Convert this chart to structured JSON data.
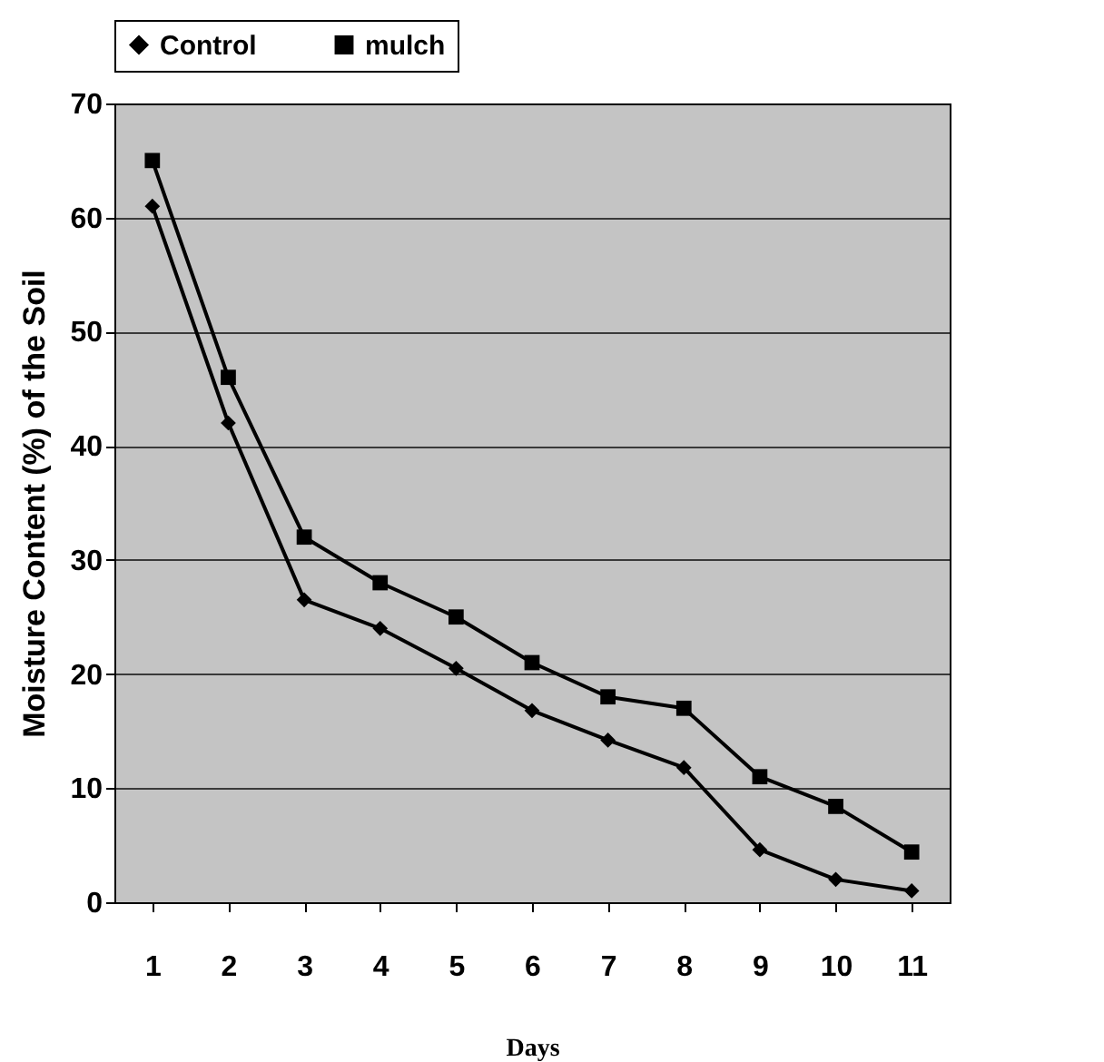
{
  "chart_data": {
    "type": "line",
    "xlabel": "Days",
    "ylabel": "Moisture Content (%) of the Soil",
    "categories": [
      "1",
      "2",
      "3",
      "4",
      "5",
      "6",
      "7",
      "8",
      "9",
      "10",
      "11"
    ],
    "series": [
      {
        "name": "Control",
        "color": "#000000",
        "marker": "diamond",
        "values": [
          61,
          42,
          26.5,
          24,
          20.5,
          16.8,
          14.2,
          11.8,
          4.6,
          2,
          1
        ]
      },
      {
        "name": "mulch",
        "color": "#000000",
        "marker": "square",
        "values": [
          65,
          46,
          32,
          28,
          25,
          21,
          18,
          17,
          11,
          8.4,
          4.4
        ]
      }
    ],
    "ylim": [
      0,
      70
    ],
    "yticks": [
      0,
      10,
      20,
      30,
      40,
      50,
      60,
      70
    ],
    "grid": "y",
    "legend": "top"
  }
}
